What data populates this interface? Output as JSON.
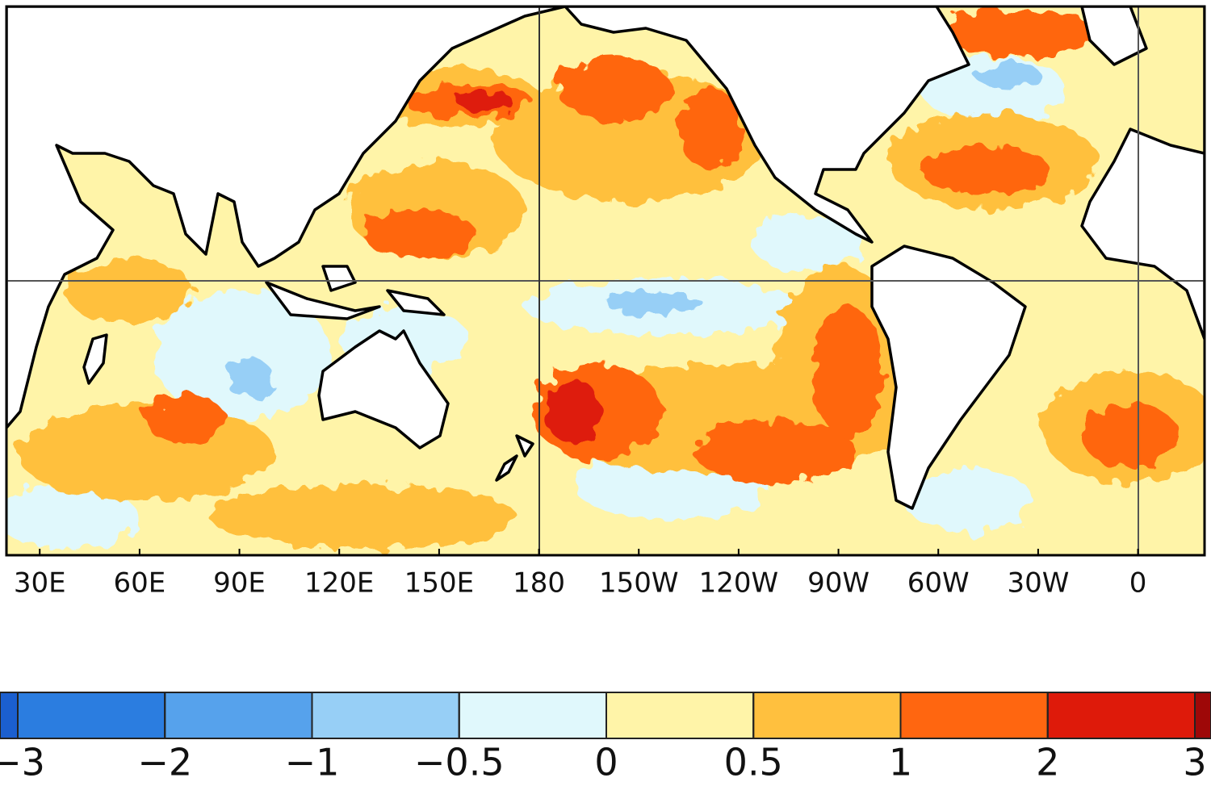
{
  "map": {
    "x_axis": {
      "xlim": [
        20,
        380
      ],
      "xticks": [
        {
          "value": 30,
          "label": "30E"
        },
        {
          "value": 60,
          "label": "60E"
        },
        {
          "value": 90,
          "label": "90E"
        },
        {
          "value": 120,
          "label": "120E"
        },
        {
          "value": 150,
          "label": "150E"
        },
        180,
        {
          "value": 210,
          "label": "150W"
        },
        {
          "value": 240,
          "label": "120W"
        },
        {
          "value": 270,
          "label": "90W"
        },
        {
          "value": 300,
          "label": "60W"
        },
        {
          "value": 330,
          "label": "30W"
        },
        {
          "value": 360,
          "label": "0"
        }
      ]
    },
    "colorbar": {
      "levels": [
        {
          "value": -3,
          "label": "−3"
        },
        {
          "value": -2,
          "label": "−2"
        },
        {
          "value": -1,
          "label": "−1"
        },
        {
          "value": -0.5,
          "label": "−0.5"
        },
        0,
        0.5,
        1,
        2,
        3
      ],
      "colors": [
        "#1b5fcf",
        "#2b7de0",
        "#56a2ec",
        "#97cff6",
        "#e0f8fc",
        "#fff4a8",
        "#ffc03e",
        "#ff6610",
        "#de1a0a",
        "#9e0808"
      ]
    }
  }
}
